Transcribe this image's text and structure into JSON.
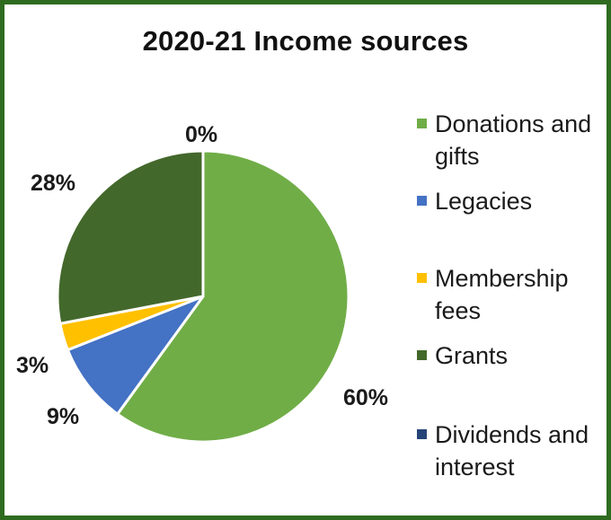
{
  "chart_data": {
    "type": "pie",
    "title": "2020-21 Income sources",
    "legend_position": "right",
    "slices": [
      {
        "name": "Donations and gifts",
        "value": 60,
        "label": "60%",
        "color": "#70ad47"
      },
      {
        "name": "Legacies",
        "value": 9,
        "label": "9%",
        "color": "#4472c4"
      },
      {
        "name": "Membership fees",
        "value": 3,
        "label": "3%",
        "color": "#ffc000"
      },
      {
        "name": "Grants",
        "value": 28,
        "label": "28%",
        "color": "#43682b"
      },
      {
        "name": "Dividends and interest",
        "value": 0,
        "label": "0%",
        "color": "#264478"
      }
    ]
  },
  "frame_color": "#2e6b1e"
}
